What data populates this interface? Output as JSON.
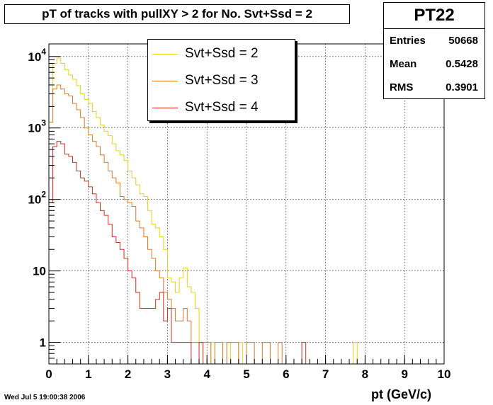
{
  "title": "pT of tracks with pullXY > 2 for No. Svt+Ssd = 2",
  "stats": {
    "name": "PT22",
    "rows": [
      {
        "label": "Entries",
        "value": "50668"
      },
      {
        "label": "Mean",
        "value": "0.5428"
      },
      {
        "label": "RMS",
        "value": "0.3901"
      }
    ]
  },
  "timestamp": "Wed Jul  5 19:00:38 2006",
  "chart_data": {
    "type": "line",
    "step": true,
    "xlabel": "pt (GeV/c)",
    "ylabel": "",
    "xlim": [
      0,
      10
    ],
    "ylim": [
      0.5,
      15000
    ],
    "yscale": "log",
    "grid": true,
    "legend_position": "top-center",
    "x_ticks": [
      0,
      1,
      2,
      3,
      4,
      5,
      6,
      7,
      8,
      9,
      10
    ],
    "x_tick_labels": [
      "0",
      "1",
      "2",
      "3",
      "4",
      "5",
      "6",
      "7",
      "8",
      "9",
      "10"
    ],
    "y_ticks": [
      1,
      10,
      100,
      1000,
      10000
    ],
    "y_tick_labels": [
      {
        "base": "1",
        "exp": ""
      },
      {
        "base": "10",
        "exp": ""
      },
      {
        "base": "10",
        "exp": "2"
      },
      {
        "base": "10",
        "exp": "3"
      },
      {
        "base": "10",
        "exp": "4"
      }
    ],
    "bin_edges_start": 0,
    "bin_width": 0.1,
    "series": [
      {
        "name": "Svt+Ssd = 2",
        "color": "#e8d21a",
        "values": [
          3000,
          8000,
          9500,
          8000,
          6500,
          5500,
          4800,
          3900,
          3000,
          2500,
          2200,
          1700,
          1400,
          1100,
          900,
          780,
          600,
          480,
          420,
          350,
          250,
          200,
          160,
          120,
          110,
          70,
          45,
          40,
          30,
          20,
          8,
          7,
          5,
          8,
          11,
          6,
          5,
          3,
          1,
          0,
          0,
          1,
          0,
          0,
          1,
          1,
          0,
          0,
          1,
          0,
          0,
          0,
          0,
          0,
          0,
          0,
          0,
          0,
          0,
          0,
          0,
          0,
          0,
          0,
          0,
          0,
          0,
          0,
          0,
          0,
          0,
          0,
          0,
          0,
          0,
          0,
          0,
          1,
          0,
          0
        ]
      },
      {
        "name": "Svt+Ssd = 3",
        "color": "#e07820",
        "values": [
          1200,
          3500,
          4000,
          3500,
          3000,
          2800,
          2200,
          1800,
          1400,
          1000,
          800,
          650,
          550,
          420,
          330,
          250,
          200,
          170,
          110,
          100,
          90,
          80,
          50,
          40,
          30,
          20,
          15,
          10,
          8,
          5,
          4,
          3,
          2,
          2,
          3,
          2,
          1,
          1,
          1,
          1,
          1,
          0,
          1,
          1,
          0,
          1,
          1,
          1,
          0,
          0,
          1,
          1,
          0,
          0,
          1,
          1,
          0,
          0,
          1,
          0,
          0,
          0,
          0,
          0,
          0,
          0,
          0,
          0,
          0,
          0,
          0,
          0,
          0,
          0,
          0,
          0,
          0,
          0,
          0,
          0
        ]
      },
      {
        "name": "Svt+Ssd = 4",
        "color": "#d42a1e",
        "values": [
          90,
          550,
          650,
          600,
          430,
          400,
          330,
          250,
          200,
          180,
          150,
          120,
          90,
          70,
          60,
          45,
          30,
          25,
          20,
          15,
          10,
          8,
          5,
          3,
          3,
          3,
          3,
          4,
          5,
          2,
          3,
          1,
          1,
          1,
          1,
          1,
          0,
          0,
          1,
          0,
          0,
          0,
          0,
          0,
          0,
          0,
          0,
          0,
          0,
          0,
          0,
          0,
          0,
          0,
          0,
          0,
          0,
          0,
          0,
          0,
          0,
          0,
          0,
          0,
          1,
          0,
          0,
          0,
          0,
          0,
          0,
          0,
          0,
          0,
          0,
          0,
          0,
          0,
          0,
          0
        ]
      }
    ]
  }
}
